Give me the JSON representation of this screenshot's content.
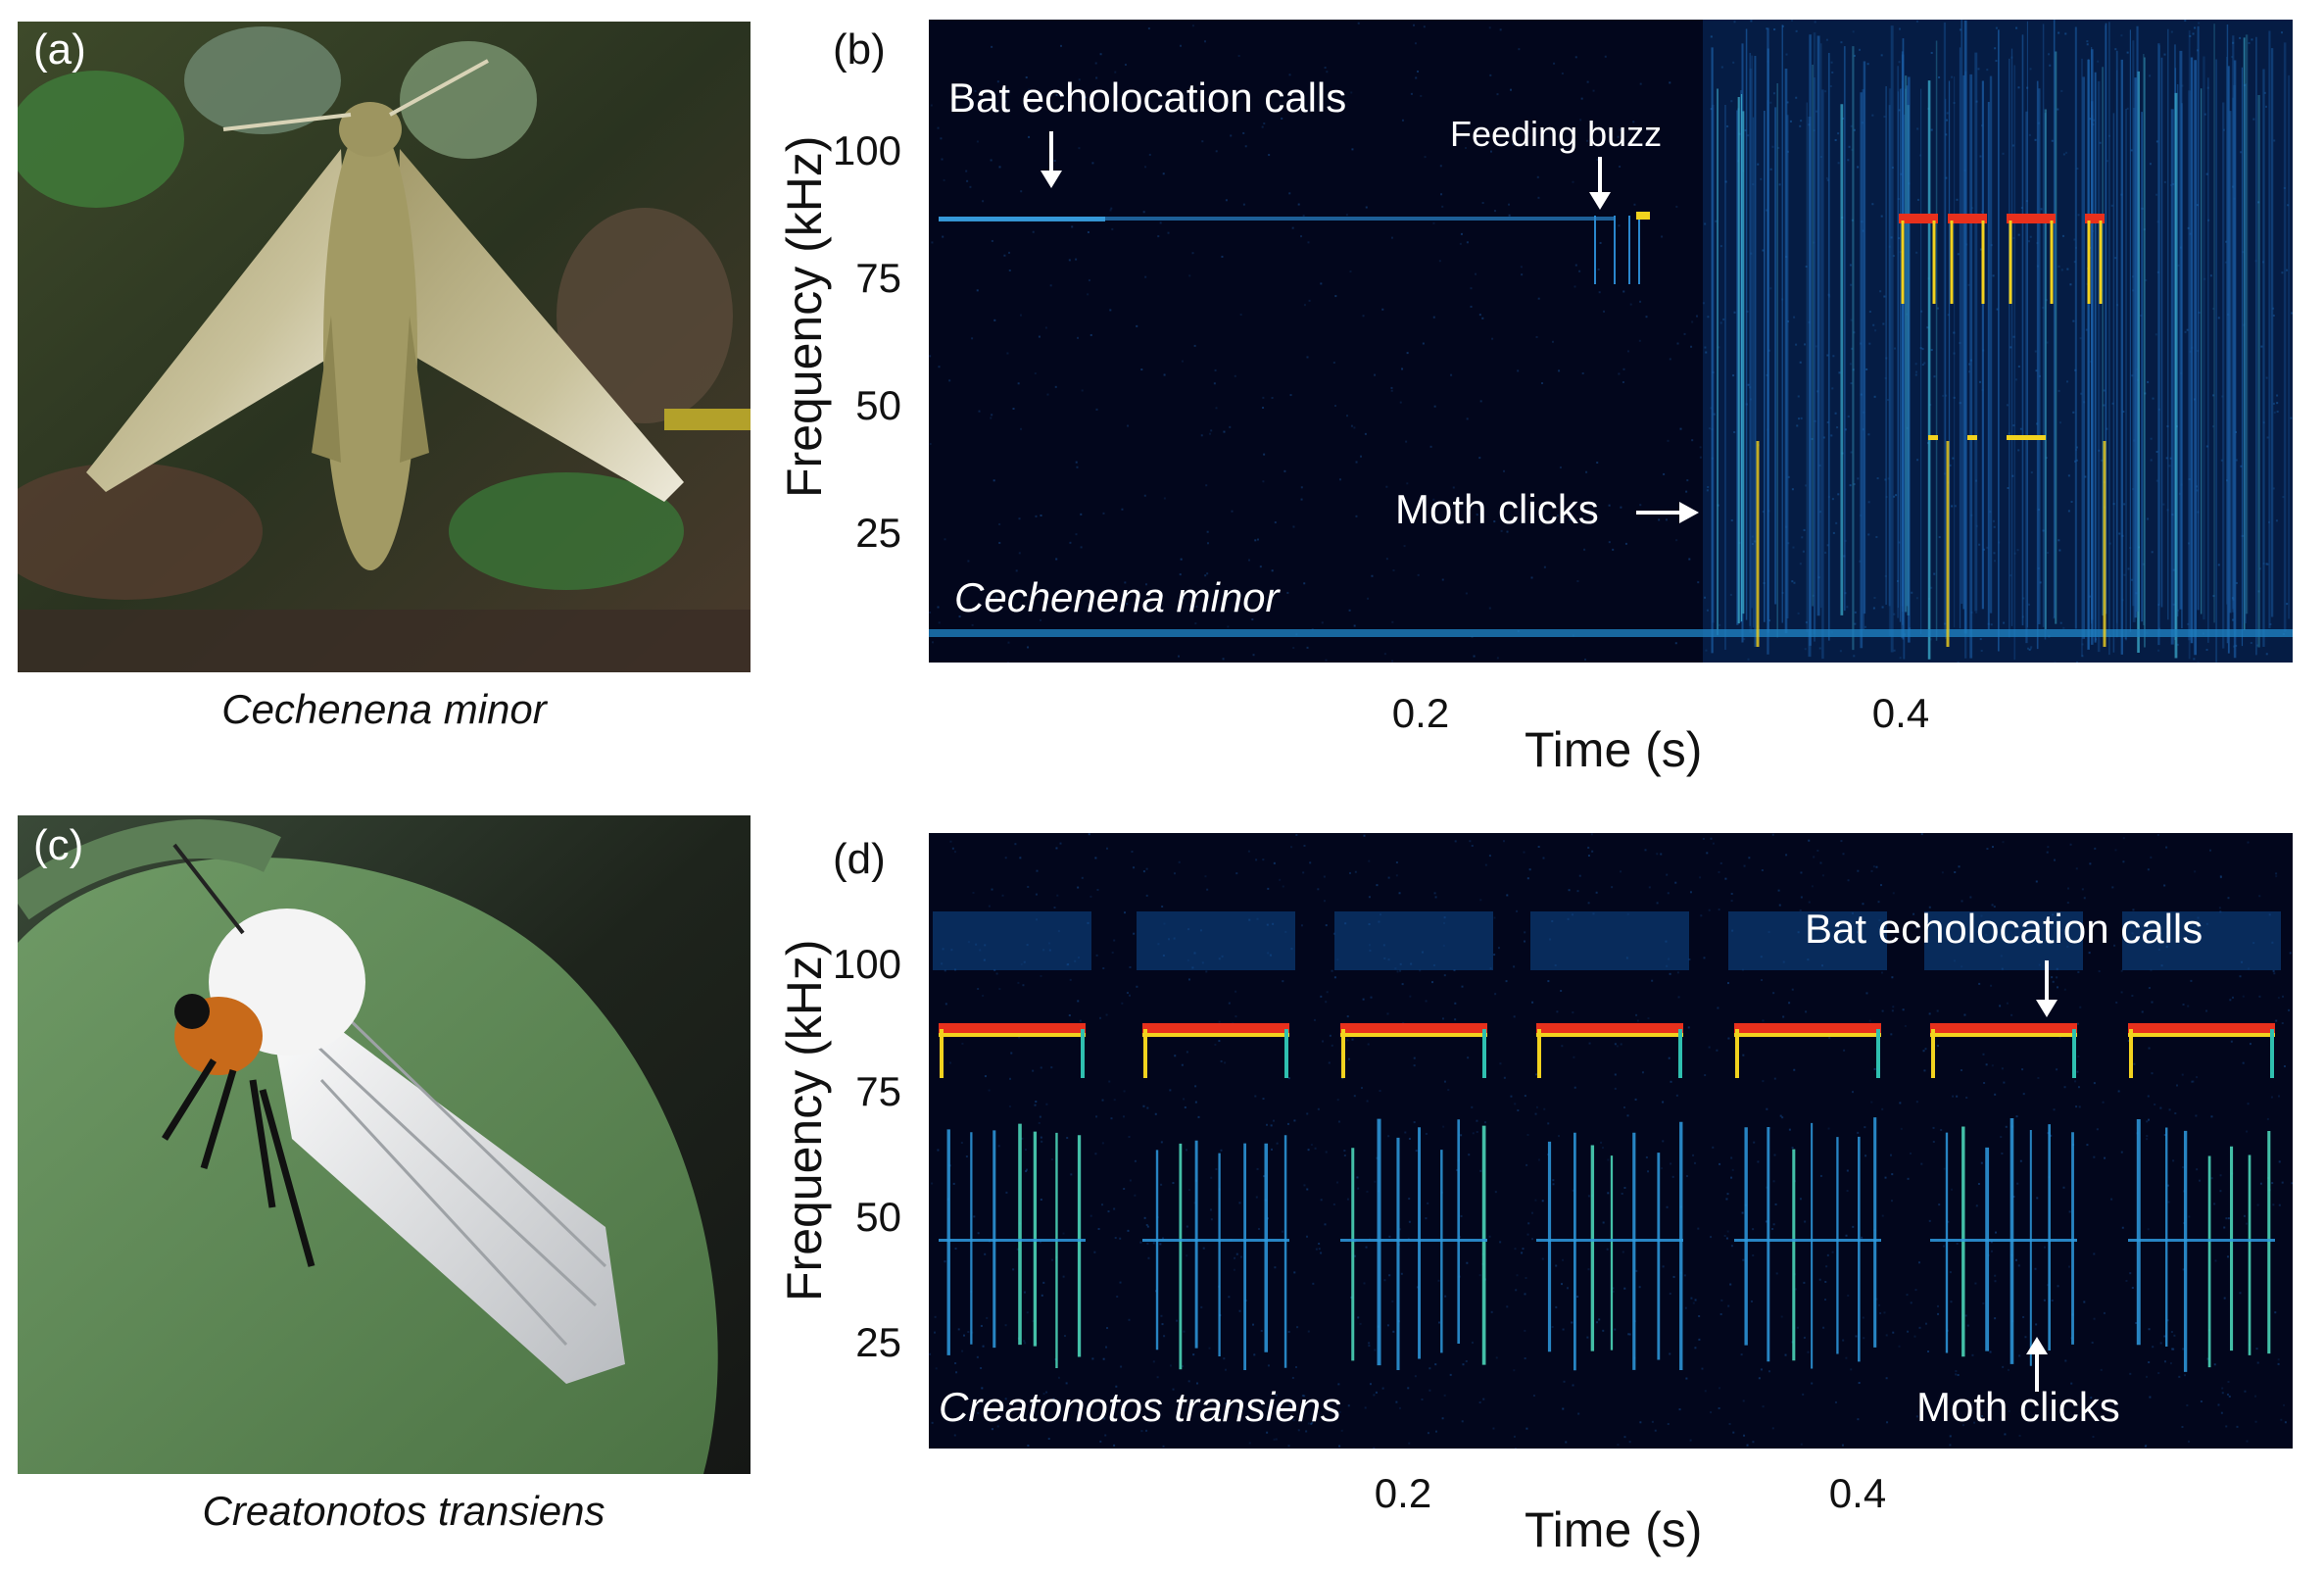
{
  "panels": {
    "a": {
      "label": "(a)",
      "caption": "Cechenena minor"
    },
    "b": {
      "label": "(b)",
      "ylabel": "Frequency (kHz)",
      "xlabel": "Time (s)",
      "yticks": [
        "100",
        "75",
        "50",
        "25"
      ],
      "xticks": [
        "0.2",
        "0.4"
      ],
      "annotations": {
        "bat_calls": "Bat echolocation calls",
        "feeding_buzz": "Feeding buzz",
        "moth_clicks": "Moth clicks",
        "species": "Cechenena minor"
      }
    },
    "c": {
      "label": "(c)",
      "caption": "Creatonotos transiens"
    },
    "d": {
      "label": "(d)",
      "ylabel": "Frequency (kHz)",
      "xlabel": "Time (s)",
      "yticks": [
        "100",
        "75",
        "50",
        "25"
      ],
      "xticks": [
        "0.2",
        "0.4"
      ],
      "annotations": {
        "bat_calls": "Bat echolocation calls",
        "moth_clicks": "Moth clicks",
        "species": "Creatonotos transiens"
      }
    }
  },
  "colors": {
    "spectrogram_bg": "#02061c",
    "call_hot": "#e8301c",
    "call_warm": "#f2d21e",
    "call_cool": "#2e9be0"
  }
}
